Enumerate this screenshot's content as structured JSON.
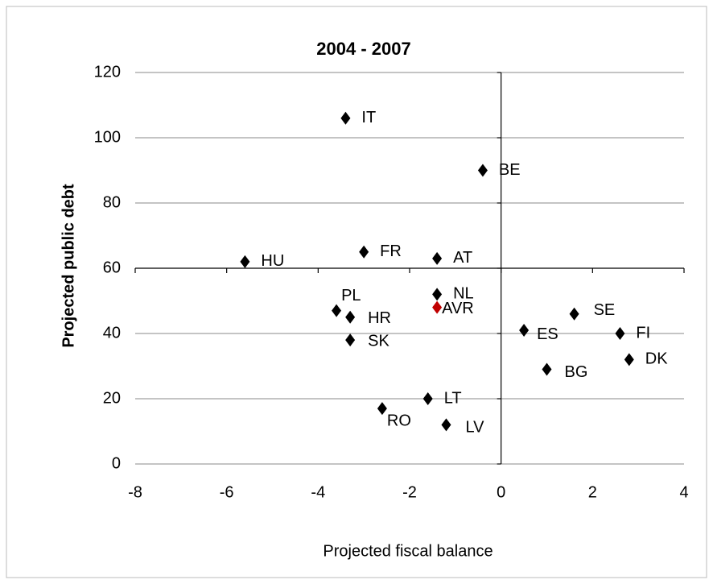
{
  "chart_data": {
    "type": "scatter",
    "title": "2004 - 2007",
    "x_label": "Projected fiscal balance",
    "y_label": "Projected public debt",
    "xlim": [
      -8,
      4
    ],
    "xticks": [
      -8,
      -6,
      -4,
      -2,
      0,
      2,
      4
    ],
    "ylim": [
      0,
      120
    ],
    "yticks": [
      0,
      20,
      40,
      60,
      80,
      100,
      120
    ],
    "grid": true,
    "x_axis_crosses": 60,
    "y_axis_crosses": 0,
    "series": [
      {
        "color": "#000000",
        "labels": [
          "IT",
          "BE",
          "HU",
          "FR",
          "AT",
          "NL",
          "PL",
          "HR",
          "SK",
          "ES",
          "SE",
          "FI",
          "DK",
          "BG",
          "LT",
          "RO",
          "LV"
        ],
        "x": [
          -3.4,
          -0.4,
          -5.6,
          -3.0,
          -1.4,
          -1.4,
          -3.6,
          -3.3,
          -3.3,
          0.5,
          1.6,
          2.6,
          2.8,
          1.0,
          -1.6,
          -2.6,
          -1.2
        ],
        "values": [
          106,
          90,
          62,
          65,
          63,
          52,
          47,
          45,
          38,
          41,
          46,
          40,
          32,
          29,
          20,
          17,
          12
        ]
      },
      {
        "color": "#c00000",
        "labels": [
          "AVR"
        ],
        "x": [
          -1.4
        ],
        "values": [
          48
        ]
      }
    ]
  }
}
